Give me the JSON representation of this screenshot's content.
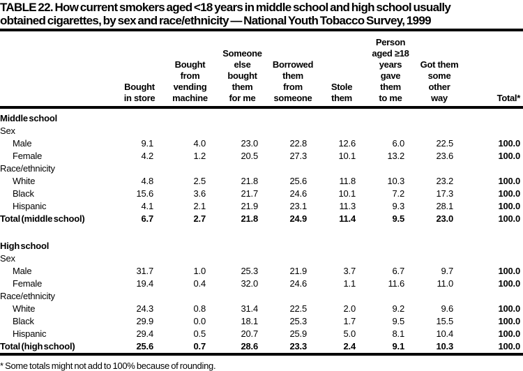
{
  "title": "TABLE 22. How current smokers aged <18 years in middle school and high school usually\nobtained cigarettes, by sex and race/ethnicity — National Youth Tobacco Survey, 1999",
  "columns": [
    "Bought\nin store",
    "Bought\nfrom\nvending\nmachine",
    "Someone\nelse\nbought\nthem\nfor me",
    "Borrowed\nthem\nfrom\nsomeone",
    "Stole\nthem",
    "Person\naged ≥18\nyears\ngave\nthem\nto me",
    "Got them\nsome\nother\nway",
    "Total*"
  ],
  "rows": [
    {
      "type": "section",
      "label": "Middle school",
      "values": []
    },
    {
      "type": "subheading",
      "label": "Sex",
      "values": []
    },
    {
      "type": "data",
      "label": "Male",
      "values": [
        "9.1",
        "4.0",
        "23.0",
        "22.8",
        "12.6",
        "6.0",
        "22.5",
        "100.0"
      ]
    },
    {
      "type": "data",
      "label": "Female",
      "values": [
        "4.2",
        "1.2",
        "20.5",
        "27.3",
        "10.1",
        "13.2",
        "23.6",
        "100.0"
      ]
    },
    {
      "type": "subheading",
      "label": "Race/ethnicity",
      "values": []
    },
    {
      "type": "data",
      "label": "White",
      "values": [
        "4.8",
        "2.5",
        "21.8",
        "25.6",
        "11.8",
        "10.3",
        "23.2",
        "100.0"
      ]
    },
    {
      "type": "data",
      "label": "Black",
      "values": [
        "15.6",
        "3.6",
        "21.7",
        "24.6",
        "10.1",
        "7.2",
        "17.3",
        "100.0"
      ]
    },
    {
      "type": "data",
      "label": "Hispanic",
      "values": [
        "4.1",
        "2.1",
        "21.9",
        "23.1",
        "11.3",
        "9.3",
        "28.1",
        "100.0"
      ]
    },
    {
      "type": "total",
      "label": "Total (middle school)",
      "values": [
        "6.7",
        "2.7",
        "21.8",
        "24.9",
        "11.4",
        "9.5",
        "23.0",
        "100.0"
      ]
    },
    {
      "type": "spacer",
      "label": "",
      "values": []
    },
    {
      "type": "section",
      "label": "High school",
      "values": []
    },
    {
      "type": "subheading",
      "label": "Sex",
      "values": []
    },
    {
      "type": "data",
      "label": "Male",
      "values": [
        "31.7",
        "1.0",
        "25.3",
        "21.9",
        "3.7",
        "6.7",
        "9.7",
        "100.0"
      ]
    },
    {
      "type": "data",
      "label": "Female",
      "values": [
        "19.4",
        "0.4",
        "32.0",
        "24.6",
        "1.1",
        "11.6",
        "11.0",
        "100.0"
      ]
    },
    {
      "type": "subheading",
      "label": "Race/ethnicity",
      "values": []
    },
    {
      "type": "data",
      "label": "White",
      "values": [
        "24.3",
        "0.8",
        "31.4",
        "22.5",
        "2.0",
        "9.2",
        "9.6",
        "100.0"
      ]
    },
    {
      "type": "data",
      "label": "Black",
      "values": [
        "29.9",
        "0.0",
        "18.1",
        "25.3",
        "1.7",
        "9.5",
        "15.5",
        "100.0"
      ]
    },
    {
      "type": "data",
      "label": "Hispanic",
      "values": [
        "29.4",
        "0.5",
        "20.7",
        "25.9",
        "5.0",
        "8.1",
        "10.4",
        "100.0"
      ]
    },
    {
      "type": "total",
      "label": "Total (high school)",
      "values": [
        "25.6",
        "0.7",
        "28.6",
        "23.3",
        "2.4",
        "9.1",
        "10.3",
        "100.0"
      ]
    }
  ],
  "footnote": "* Some totals might not add to 100% because of rounding."
}
